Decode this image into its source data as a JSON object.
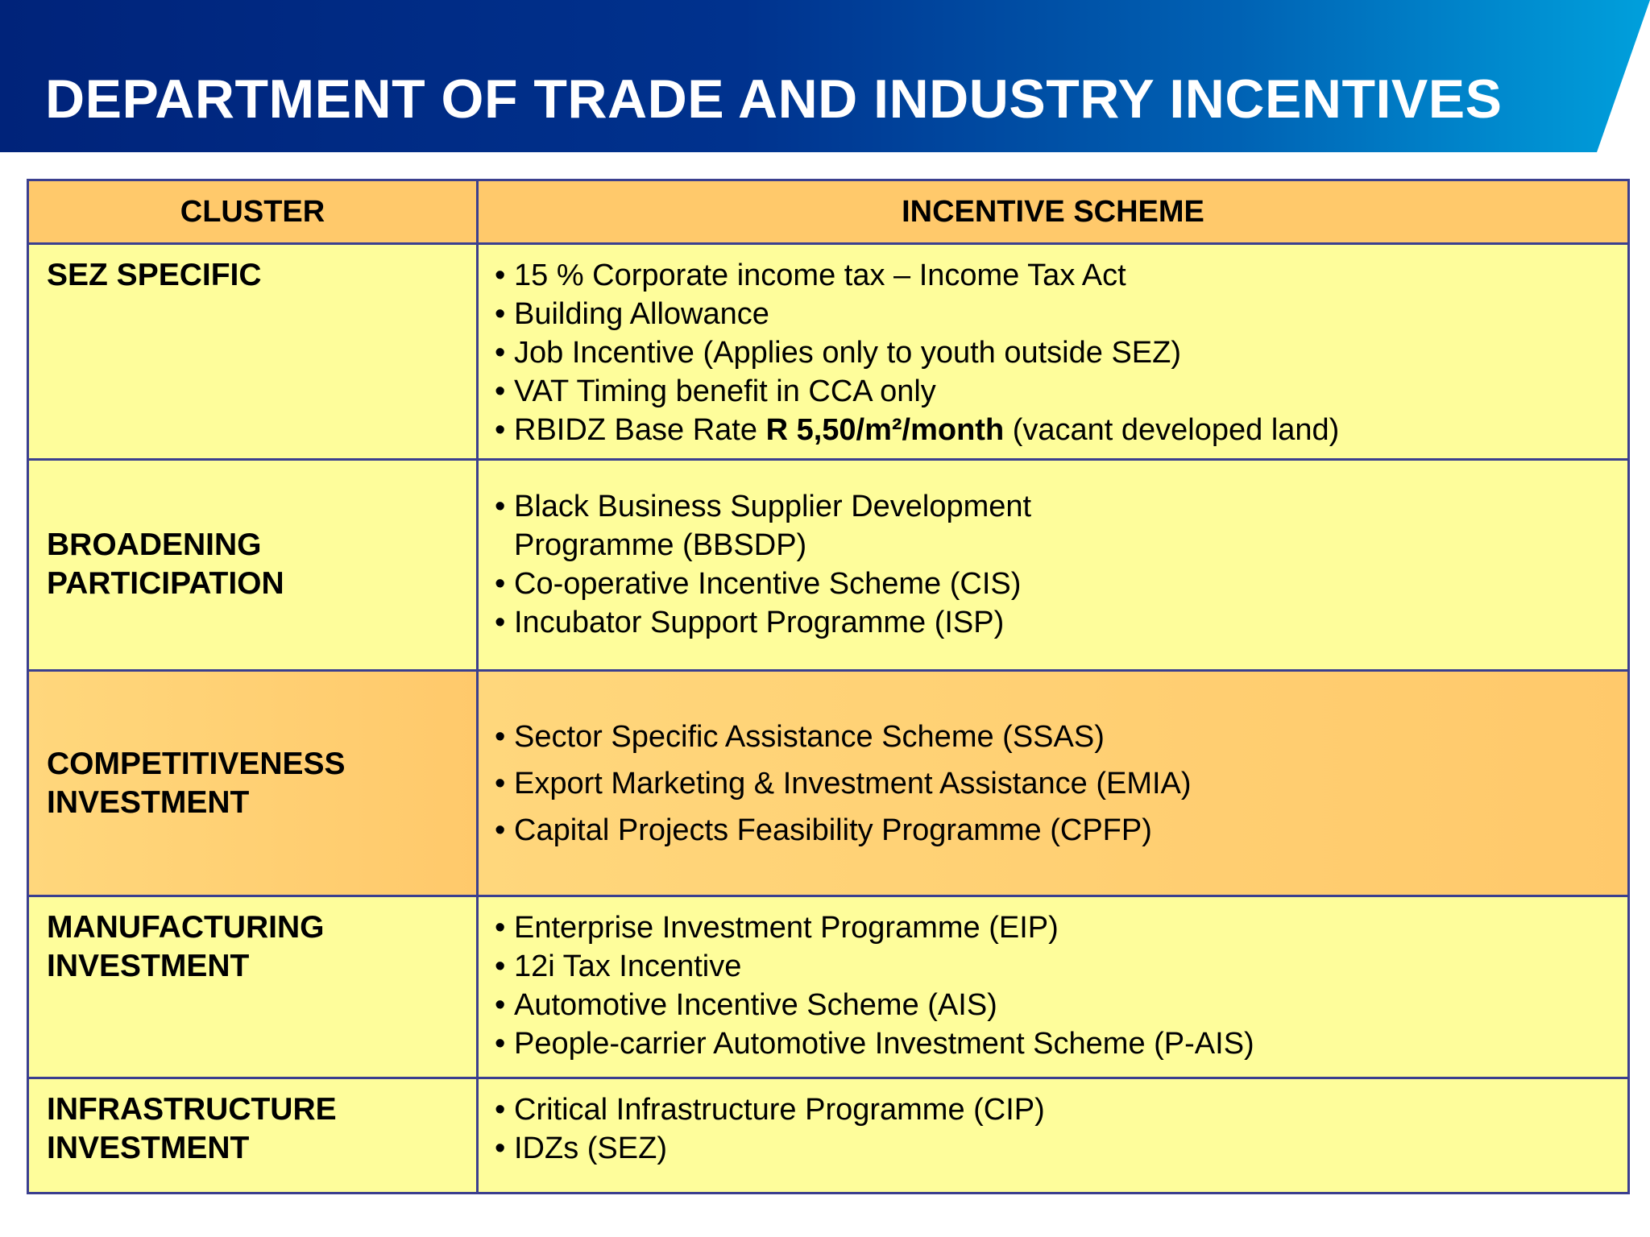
{
  "title": "DEPARTMENT OF TRADE AND INDUSTRY INCENTIVES",
  "colors": {
    "banner_dark": "#00237a",
    "banner_light": "#00a0dc",
    "header_fill": "#ffc96b",
    "row_yellow": "#fefd9b",
    "row_orange": "#ffc96b",
    "border": "#3b3f8f"
  },
  "table": {
    "headers": {
      "cluster": "CLUSTER",
      "scheme": "INCENTIVE SCHEME"
    },
    "rows": [
      {
        "cluster": [
          "SEZ SPECIFIC"
        ],
        "items": [
          "15 % Corporate income tax – Income Tax Act",
          "Building Allowance",
          "Job Incentive (Applies only to youth outside SEZ)",
          "VAT Timing benefit in CCA only"
        ],
        "rate_item": {
          "prefix": "RBIDZ Base Rate ",
          "bold": "R 5,50/m²/month",
          "suffix": " (vacant developed land)"
        }
      },
      {
        "cluster": [
          "BROADENING",
          "PARTICIPATION"
        ],
        "items": [
          [
            "Black Business Supplier Development",
            "Programme (BBSDP)"
          ],
          "Co-operative Incentive Scheme (CIS)",
          "Incubator Support Programme (ISP)"
        ]
      },
      {
        "cluster": [
          "COMPETITIVENESS",
          "INVESTMENT"
        ],
        "items": [
          "Sector Specific Assistance Scheme (SSAS)",
          "Export Marketing & Investment Assistance (EMIA)",
          "Capital Projects Feasibility Programme (CPFP)"
        ]
      },
      {
        "cluster": [
          "MANUFACTURING",
          "INVESTMENT"
        ],
        "items": [
          "Enterprise Investment Programme (EIP)",
          "12i Tax Incentive",
          "Automotive Incentive Scheme (AIS)",
          "People-carrier Automotive Investment Scheme (P-AIS)"
        ]
      },
      {
        "cluster": [
          "INFRASTRUCTURE",
          "INVESTMENT"
        ],
        "items": [
          "Critical Infrastructure Programme (CIP)",
          "IDZs (SEZ)"
        ]
      }
    ]
  }
}
